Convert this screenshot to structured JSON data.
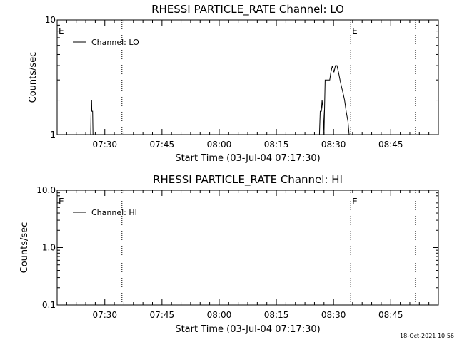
{
  "timestamp": "18-Oct-2021 10:56",
  "chart_data": [
    {
      "type": "line",
      "title": "RHESSI PARTICLE_RATE Channel: LO",
      "xlabel": "Start Time (03-Jul-04 07:17:30)",
      "ylabel": "Counts/sec",
      "yscale": "log",
      "ylim": [
        1,
        10
      ],
      "y_ticks": [
        1,
        10
      ],
      "y_tick_labels": [
        "1",
        "10"
      ],
      "xlim_minutes": [
        0,
        100
      ],
      "x_ticks_minutes": [
        12.5,
        27.5,
        42.5,
        57.5,
        72.5,
        87.5
      ],
      "x_tick_labels": [
        "07:30",
        "07:45",
        "08:00",
        "08:15",
        "08:30",
        "08:45"
      ],
      "markers": [
        {
          "label": "E",
          "x": 0
        },
        {
          "label": "",
          "x": 17
        },
        {
          "label": "E",
          "x": 77
        },
        {
          "label": "",
          "x": 94
        }
      ],
      "legend": {
        "position": "top-left",
        "entries": [
          "Channel: LO"
        ]
      },
      "series": [
        {
          "name": "Channel: LO",
          "color": "#000000",
          "x": [
            8.8,
            8.9,
            9.0,
            9.05,
            9.1,
            9.3,
            9.4,
            68.8,
            69.0,
            69.3,
            69.5,
            69.8,
            70.0,
            70.3,
            71.5,
            71.8,
            72.2,
            72.6,
            73.0,
            73.4,
            73.8,
            74.2,
            74.6,
            75.0,
            75.4,
            75.8,
            76.3,
            76.6
          ],
          "y": [
            1,
            1.6,
            1.6,
            2.0,
            1.6,
            1.6,
            1,
            1,
            1.6,
            1.6,
            2.0,
            1.6,
            1,
            3.0,
            3.0,
            3.5,
            4.0,
            3.5,
            4.0,
            4.0,
            3.5,
            3.0,
            2.6,
            2.3,
            2.0,
            1.6,
            1.3,
            1
          ]
        }
      ]
    },
    {
      "type": "line",
      "title": "RHESSI PARTICLE_RATE Channel: HI",
      "xlabel": "Start Time (03-Jul-04 07:17:30)",
      "ylabel": "Counts/sec",
      "yscale": "log",
      "ylim": [
        0.1,
        10
      ],
      "y_ticks": [
        0.1,
        1,
        10
      ],
      "y_tick_labels": [
        "0.1",
        "1.0",
        "10.0"
      ],
      "xlim_minutes": [
        0,
        100
      ],
      "x_ticks_minutes": [
        12.5,
        27.5,
        42.5,
        57.5,
        72.5,
        87.5
      ],
      "x_tick_labels": [
        "07:30",
        "07:45",
        "08:00",
        "08:15",
        "08:30",
        "08:45"
      ],
      "markers": [
        {
          "label": "E",
          "x": 0
        },
        {
          "label": "",
          "x": 17
        },
        {
          "label": "E",
          "x": 77
        },
        {
          "label": "",
          "x": 94
        }
      ],
      "legend": {
        "position": "top-left",
        "entries": [
          "Channel: HI"
        ]
      },
      "series": [
        {
          "name": "Channel: HI",
          "color": "#000000",
          "x": [],
          "y": []
        }
      ]
    }
  ]
}
